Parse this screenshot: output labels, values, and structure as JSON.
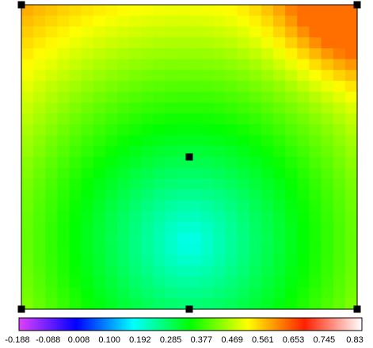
{
  "chart_data": {
    "type": "heatmap",
    "title": "",
    "xlabel": "",
    "ylabel": "",
    "grid": false,
    "colorbar": {
      "placement": "bottom",
      "min": -0.188,
      "max": 0.83,
      "tick_labels": [
        "-0.188",
        "-0.088",
        "0.008",
        "0.100",
        "0.192",
        "0.285",
        "0.377",
        "0.469",
        "0.561",
        "0.653",
        "0.745",
        "0.83"
      ],
      "colors": [
        "#e040fb",
        "#0000ff",
        "#00ffff",
        "#00ff00",
        "#ffff00",
        "#ff2000",
        "#ffffff"
      ]
    },
    "field": {
      "rows": 28,
      "cols": 28,
      "approx_extremes": {
        "min_value_location": "lower-center",
        "min_value": 0.16,
        "max_value_location": "top-right",
        "max_value": 0.6
      }
    },
    "markers": {
      "shape": "square",
      "color": "#000000",
      "points": [
        {
          "u": 0.0,
          "v": 0.0
        },
        {
          "u": 1.0,
          "v": 0.0
        },
        {
          "u": 0.5,
          "v": 0.5
        },
        {
          "u": 0.0,
          "v": 1.0
        },
        {
          "u": 0.5,
          "v": 1.0
        },
        {
          "u": 1.0,
          "v": 1.0
        }
      ]
    }
  }
}
